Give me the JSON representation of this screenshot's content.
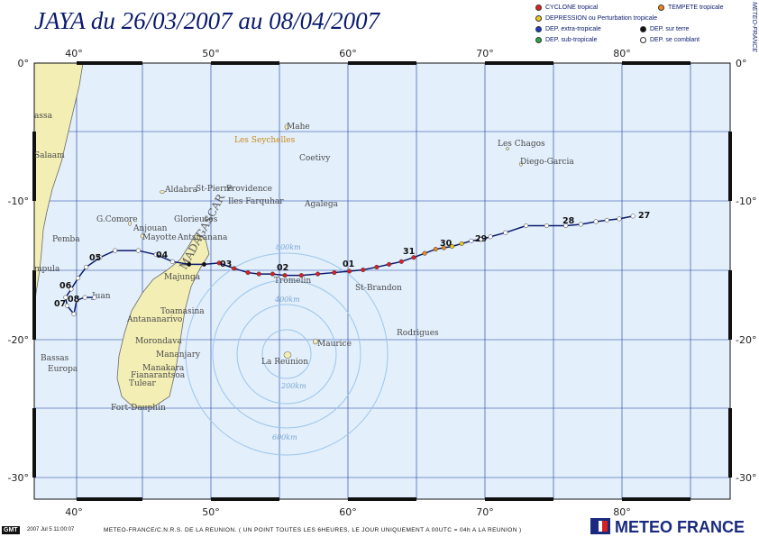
{
  "title": "JAYA du 26/03/2007 au 08/04/2007",
  "side_label": "METEO-FRANCE",
  "legend": [
    {
      "label": "CYCLONE tropical",
      "color": "#e02020"
    },
    {
      "label": "TEMPETE tropicale",
      "color": "#f08a1c"
    },
    {
      "label": "DEPRESSION ou Perturbation tropicale",
      "color": "#f2cc1a"
    },
    {
      "label": "DEP. extra-tropicale",
      "color": "#1a3ad0"
    },
    {
      "label": "DEP. sur terre",
      "color": "#111111"
    },
    {
      "label": "DEP. sub-tropicale",
      "color": "#2aa84a"
    },
    {
      "label": "DEP. se comblant",
      "color": "#ffffff"
    }
  ],
  "axes": {
    "lon_ticks": [
      "40°",
      "50°",
      "60°",
      "70°",
      "80°"
    ],
    "lat_ticks": [
      "0°",
      "-10°",
      "-20°",
      "-30°"
    ]
  },
  "places_blue": [
    "Les Seychelles",
    "Les Chagos"
  ],
  "places": [
    "Mahe",
    "Coetivy",
    "Aldabra",
    "St-Pierre",
    "Providence",
    "Iles Farquhar",
    "Agalega",
    "G.Comore",
    "Anjouan",
    "Mayotte",
    "Glorieuses",
    "Antsiranana",
    "Majunga",
    "Tromelin",
    "St-Brandon",
    "Antananarivo",
    "Toamasina",
    "Morondava",
    "Manakara",
    "Mananjary",
    "Fianarantsoa",
    "Tulear",
    "Fort-Dauphin",
    "Bassas",
    "Europa",
    "Juan",
    "Maurice",
    "La Reunion",
    "Rodrigues",
    "Diego-Garcia",
    "Pemba",
    "Salaam",
    "assa",
    "mpula"
  ],
  "madagascar_label": "MADAGASCAR",
  "range_rings": [
    "200km",
    "400km",
    "600km",
    "800km"
  ],
  "track_day_labels": [
    "28",
    "27",
    "29",
    "30",
    "31",
    "01",
    "02",
    "03",
    "04",
    "05",
    "06",
    "07",
    "08"
  ],
  "footer": {
    "gmt": "GMT",
    "timestamp": "2007 Jul  5 11:00:07",
    "credit": "METEO-FRANCE/C.N.R.S. DE LA REUNION.  ( UN POINT TOUTES LES 6HEURES, LE JOUR UNIQUEMENT A 00UTC = 04h A LA REUNION )",
    "brand": "METEO FRANCE"
  },
  "track": {
    "type": "cyclone_track",
    "points": [
      {
        "lon": 80.8,
        "lat": -11.1,
        "cat": "se comblant"
      },
      {
        "lon": 79.8,
        "lat": -11.3,
        "cat": "se comblant"
      },
      {
        "lon": 78.9,
        "lat": -11.4,
        "cat": "se comblant"
      },
      {
        "lon": 78.1,
        "lat": -11.5,
        "cat": "se comblant"
      },
      {
        "lon": 77.0,
        "lat": -11.7,
        "cat": "se comblant"
      },
      {
        "lon": 75.9,
        "lat": -11.8,
        "cat": "se comblant"
      },
      {
        "lon": 74.5,
        "lat": -11.8,
        "cat": "se comblant"
      },
      {
        "lon": 73.0,
        "lat": -11.8,
        "cat": "se comblant"
      },
      {
        "lon": 71.5,
        "lat": -12.3,
        "cat": "se comblant"
      },
      {
        "lon": 70.4,
        "lat": -12.6,
        "cat": "se comblant"
      },
      {
        "lon": 69.7,
        "lat": -12.8,
        "cat": "se comblant"
      },
      {
        "lon": 69.0,
        "lat": -12.9,
        "cat": "se comblant"
      },
      {
        "lon": 68.3,
        "lat": -13.1,
        "cat": "depression"
      },
      {
        "lon": 67.6,
        "lat": -13.3,
        "cat": "depression"
      },
      {
        "lon": 67.0,
        "lat": -13.4,
        "cat": "tempete"
      },
      {
        "lon": 66.4,
        "lat": -13.5,
        "cat": "tempete"
      },
      {
        "lon": 65.6,
        "lat": -13.8,
        "cat": "tempete"
      },
      {
        "lon": 64.8,
        "lat": -14.1,
        "cat": "cyclone"
      },
      {
        "lon": 63.9,
        "lat": -14.4,
        "cat": "cyclone"
      },
      {
        "lon": 63.0,
        "lat": -14.6,
        "cat": "cyclone"
      },
      {
        "lon": 62.1,
        "lat": -14.8,
        "cat": "cyclone"
      },
      {
        "lon": 61.1,
        "lat": -15.0,
        "cat": "cyclone"
      },
      {
        "lon": 60.1,
        "lat": -15.1,
        "cat": "cyclone"
      },
      {
        "lon": 59.0,
        "lat": -15.2,
        "cat": "cyclone"
      },
      {
        "lon": 57.8,
        "lat": -15.3,
        "cat": "cyclone"
      },
      {
        "lon": 56.6,
        "lat": -15.4,
        "cat": "cyclone"
      },
      {
        "lon": 55.4,
        "lat": -15.4,
        "cat": "cyclone"
      },
      {
        "lon": 54.5,
        "lat": -15.3,
        "cat": "cyclone"
      },
      {
        "lon": 53.5,
        "lat": -15.3,
        "cat": "cyclone"
      },
      {
        "lon": 52.7,
        "lat": -15.2,
        "cat": "cyclone"
      },
      {
        "lon": 51.7,
        "lat": -14.9,
        "cat": "cyclone"
      },
      {
        "lon": 50.6,
        "lat": -14.5,
        "cat": "cyclone"
      },
      {
        "lon": 49.5,
        "lat": -14.6,
        "cat": "sur terre"
      },
      {
        "lon": 48.4,
        "lat": -14.6,
        "cat": "sur terre"
      },
      {
        "lon": 47.2,
        "lat": -14.4,
        "cat": "se comblant"
      },
      {
        "lon": 46.0,
        "lat": -13.9,
        "cat": "se comblant"
      },
      {
        "lon": 44.7,
        "lat": -13.6,
        "cat": "se comblant"
      },
      {
        "lon": 43.0,
        "lat": -13.6,
        "cat": "se comblant"
      },
      {
        "lon": 41.9,
        "lat": -14.1,
        "cat": "se comblant"
      },
      {
        "lon": 40.9,
        "lat": -14.8,
        "cat": "se comblant"
      },
      {
        "lon": 40.3,
        "lat": -15.6,
        "cat": "se comblant"
      },
      {
        "lon": 39.8,
        "lat": -16.4,
        "cat": "se comblant"
      },
      {
        "lon": 39.4,
        "lat": -17.0,
        "cat": "se comblant"
      },
      {
        "lon": 39.5,
        "lat": -17.6,
        "cat": "se comblant"
      },
      {
        "lon": 40.0,
        "lat": -18.2,
        "cat": "se comblant"
      },
      {
        "lon": 40.2,
        "lat": -17.2,
        "cat": "se comblant"
      },
      {
        "lon": 40.8,
        "lat": -17.0,
        "cat": "se comblant"
      },
      {
        "lon": 41.5,
        "lat": -17.0,
        "cat": "se comblant"
      }
    ]
  }
}
